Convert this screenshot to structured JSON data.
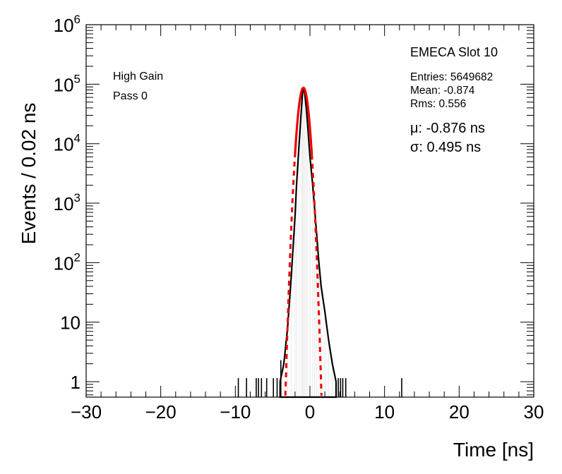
{
  "chart_data": {
    "type": "histogram",
    "xlabel": "Time [ns]",
    "ylabel": "Events / 0.02 ns",
    "xlim": [
      -30,
      30
    ],
    "ylim": [
      0.55,
      1000000
    ],
    "y_scale": "log",
    "x_ticks": [
      {
        "value": -30,
        "label": "−30"
      },
      {
        "value": -20,
        "label": "−20"
      },
      {
        "value": -10,
        "label": "−10"
      },
      {
        "value": 0,
        "label": "0"
      },
      {
        "value": 10,
        "label": "10"
      },
      {
        "value": 20,
        "label": "20"
      },
      {
        "value": 30,
        "label": "30"
      }
    ],
    "y_ticks": [
      {
        "value": 1,
        "label": "1"
      },
      {
        "value": 10,
        "label": "10"
      },
      {
        "value": 100,
        "base": "10",
        "exp": "2"
      },
      {
        "value": 1000,
        "base": "10",
        "exp": "3"
      },
      {
        "value": 10000,
        "base": "10",
        "exp": "4"
      },
      {
        "value": 100000,
        "base": "10",
        "exp": "5"
      },
      {
        "value": 1000000,
        "base": "10",
        "exp": "6"
      }
    ],
    "histogram": {
      "color": "#000000",
      "points": [
        [
          -4.0,
          1
        ],
        [
          -3.5,
          2
        ],
        [
          -3.0,
          8
        ],
        [
          -2.5,
          60
        ],
        [
          -2.0,
          600
        ],
        [
          -1.8,
          2000
        ],
        [
          -1.5,
          8000
        ],
        [
          -1.2,
          30000
        ],
        [
          -1.0,
          70000
        ],
        [
          -0.88,
          87000
        ],
        [
          -0.7,
          70000
        ],
        [
          -0.5,
          40000
        ],
        [
          -0.3,
          20000
        ],
        [
          0.0,
          6000
        ],
        [
          0.3,
          2500
        ],
        [
          0.6,
          900
        ],
        [
          0.9,
          300
        ],
        [
          1.2,
          100
        ],
        [
          1.5,
          40
        ],
        [
          2.0,
          15
        ],
        [
          2.5,
          5
        ],
        [
          3.0,
          2
        ],
        [
          3.5,
          1
        ]
      ],
      "isolated_entries": [
        {
          "x": -9.6,
          "y": 1
        },
        {
          "x": -8.5,
          "y": 1
        },
        {
          "x": -7.2,
          "y": 1
        },
        {
          "x": -6.9,
          "y": 1
        },
        {
          "x": -6.5,
          "y": 1
        },
        {
          "x": -5.8,
          "y": 1
        },
        {
          "x": -4.9,
          "y": 1
        },
        {
          "x": -4.4,
          "y": 1
        },
        {
          "x": -3.9,
          "y": 2
        },
        {
          "x": 3.8,
          "y": 1
        },
        {
          "x": 4.1,
          "y": 1
        },
        {
          "x": 4.4,
          "y": 1
        },
        {
          "x": 4.8,
          "y": 1
        },
        {
          "x": 12.3,
          "y": 1
        }
      ]
    },
    "fit": {
      "function": "gaussian",
      "color": "#ee0000",
      "mu": -0.876,
      "sigma": 0.495,
      "amplitude": 87000,
      "fitted_range": [
        -2.0,
        0.25
      ]
    },
    "text": {
      "slot_title": "EMECA Slot 10",
      "gain": "High Gain",
      "pass": "Pass 0",
      "entries": "Entries: 5649682",
      "mean": "Mean: -0.874",
      "rms": "Rms: 0.556",
      "mu_label": "μ: -0.876 ns",
      "sigma_label": "σ: 0.495 ns"
    }
  }
}
